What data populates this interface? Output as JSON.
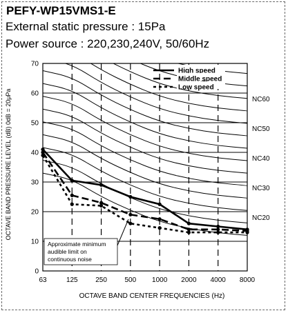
{
  "header": {
    "model": "PEFY-WP15VMS1-E",
    "static_pressure": "External static pressure : 15Pa",
    "power_source": "Power source : 220,230,240V, 50/60Hz"
  },
  "chart_data": {
    "type": "line",
    "xlabel": "OCTAVE  BAND  CENTER  FREQUENCIES (Hz)",
    "ylabel": "OCTAVE  BAND  PRESSURE  LEVEL (dB)  0dB = 20μPa",
    "categories": [
      "63",
      "125",
      "250",
      "500",
      "1000",
      "2000",
      "4000",
      "8000"
    ],
    "yticks": [
      "0",
      "10",
      "20",
      "30",
      "40",
      "50",
      "60",
      "70"
    ],
    "ylim": [
      0,
      70
    ],
    "series": [
      {
        "name": "High speed",
        "style": "solid",
        "values": [
          41,
          30.5,
          29,
          25,
          22.5,
          16,
          15,
          14
        ]
      },
      {
        "name": "Middle speed",
        "style": "dash",
        "values": [
          40,
          25.5,
          23,
          19,
          17.5,
          14,
          14,
          13.5
        ]
      },
      {
        "name": "Low speed",
        "style": "dot",
        "values": [
          39,
          22.5,
          22,
          16,
          14.5,
          13,
          13,
          13
        ]
      }
    ],
    "nc_labels": [
      {
        "text": "NC60",
        "y": 60
      },
      {
        "text": "NC50",
        "y": 50
      },
      {
        "text": "NC40",
        "y": 40
      },
      {
        "text": "NC30",
        "y": 30
      },
      {
        "text": "NC20",
        "y": 20
      }
    ],
    "annotation": [
      "Approximate minimum",
      "audible limit on",
      "continuous noise"
    ],
    "legend_position": "top-right",
    "grid": true
  }
}
